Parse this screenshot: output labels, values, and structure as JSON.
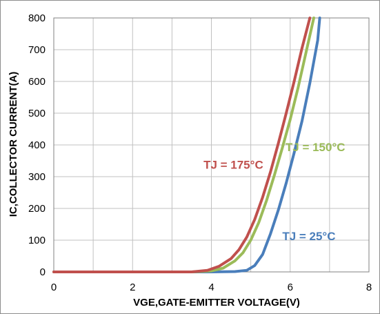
{
  "chart_data": {
    "type": "line",
    "title": "",
    "xlabel": "VGE,GATE-EMITTER VOLTAGE(V)",
    "ylabel": "IC,COLLECTOR CURRENT(A)",
    "xlim": [
      0,
      8
    ],
    "ylim": [
      0,
      800
    ],
    "xticks": [
      0,
      2,
      4,
      6,
      8
    ],
    "yticks": [
      0,
      100,
      200,
      300,
      400,
      500,
      600,
      700,
      800
    ],
    "x_gridlines": [
      0,
      1,
      2,
      3,
      4,
      5,
      6,
      7,
      8
    ],
    "grid": true,
    "legend": "none",
    "colors": {
      "grid": "#c0c0c0",
      "axis": "#808080",
      "frame": "#8c8c8c"
    },
    "series": [
      {
        "name": "TJ = 25°C",
        "color": "#4a7ebb",
        "label_pos": {
          "x": 5.8,
          "y": 100
        },
        "x": [
          0,
          4.0,
          4.6,
          4.9,
          5.1,
          5.3,
          5.5,
          5.7,
          5.9,
          6.1,
          6.3,
          6.5,
          6.7,
          6.75
        ],
        "y": [
          0,
          0,
          1,
          5,
          20,
          55,
          120,
          195,
          280,
          375,
          475,
          595,
          730,
          800
        ]
      },
      {
        "name": "TJ = 150°C",
        "color": "#9bbb59",
        "label_pos": {
          "x": 5.88,
          "y": 380
        },
        "x": [
          0,
          3.5,
          4.0,
          4.3,
          4.6,
          4.8,
          5.0,
          5.2,
          5.4,
          5.6,
          5.8,
          6.0,
          6.2,
          6.4,
          6.6
        ],
        "y": [
          0,
          0,
          3,
          12,
          35,
          60,
          100,
          155,
          225,
          305,
          390,
          480,
          580,
          690,
          800
        ]
      },
      {
        "name": "TJ = 175°C",
        "color": "#c0504d",
        "label_pos": {
          "x": 3.8,
          "y": 325
        },
        "x": [
          0,
          3.5,
          3.9,
          4.2,
          4.5,
          4.7,
          4.9,
          5.1,
          5.3,
          5.5,
          5.7,
          5.9,
          6.1,
          6.3,
          6.5
        ],
        "y": [
          0,
          0,
          5,
          18,
          42,
          70,
          110,
          165,
          235,
          315,
          405,
          500,
          600,
          705,
          800
        ]
      }
    ]
  }
}
